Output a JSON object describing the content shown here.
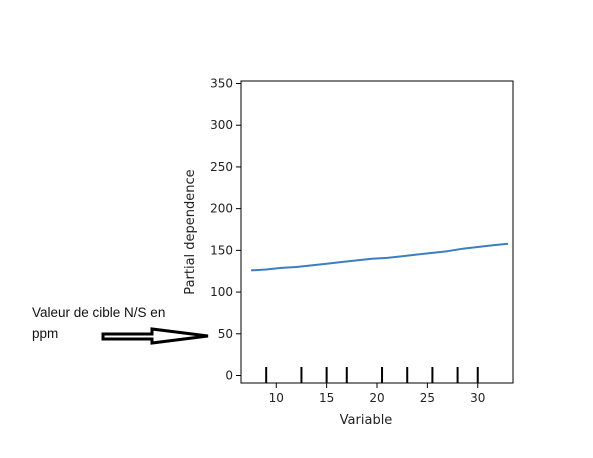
{
  "chart_data": {
    "type": "line",
    "title": "",
    "xlabel": "Variable",
    "ylabel": "Partial dependence",
    "xlim": [
      6.5,
      33.5
    ],
    "ylim": [
      -9,
      353
    ],
    "xticks": [
      10,
      15,
      20,
      25,
      30
    ],
    "yticks": [
      0,
      50,
      100,
      150,
      200,
      250,
      300,
      350
    ],
    "grid": false,
    "series": [
      {
        "color": "#3b7fc0",
        "x": [
          7.5,
          9,
          10.5,
          12,
          13.5,
          15,
          16.5,
          18,
          19.5,
          21,
          22.5,
          24,
          25.5,
          27,
          28.5,
          30,
          31.5,
          33
        ],
        "y": [
          126,
          127,
          129,
          130,
          132,
          134,
          136,
          138,
          140,
          141,
          143,
          145,
          147,
          149,
          152,
          154,
          156,
          158
        ]
      }
    ],
    "rug": [
      9,
      12.5,
      15,
      17,
      20.5,
      23,
      25.5,
      28,
      30
    ]
  },
  "annotation": {
    "line1": "Valeur de cible N/S en",
    "line2": "ppm"
  }
}
